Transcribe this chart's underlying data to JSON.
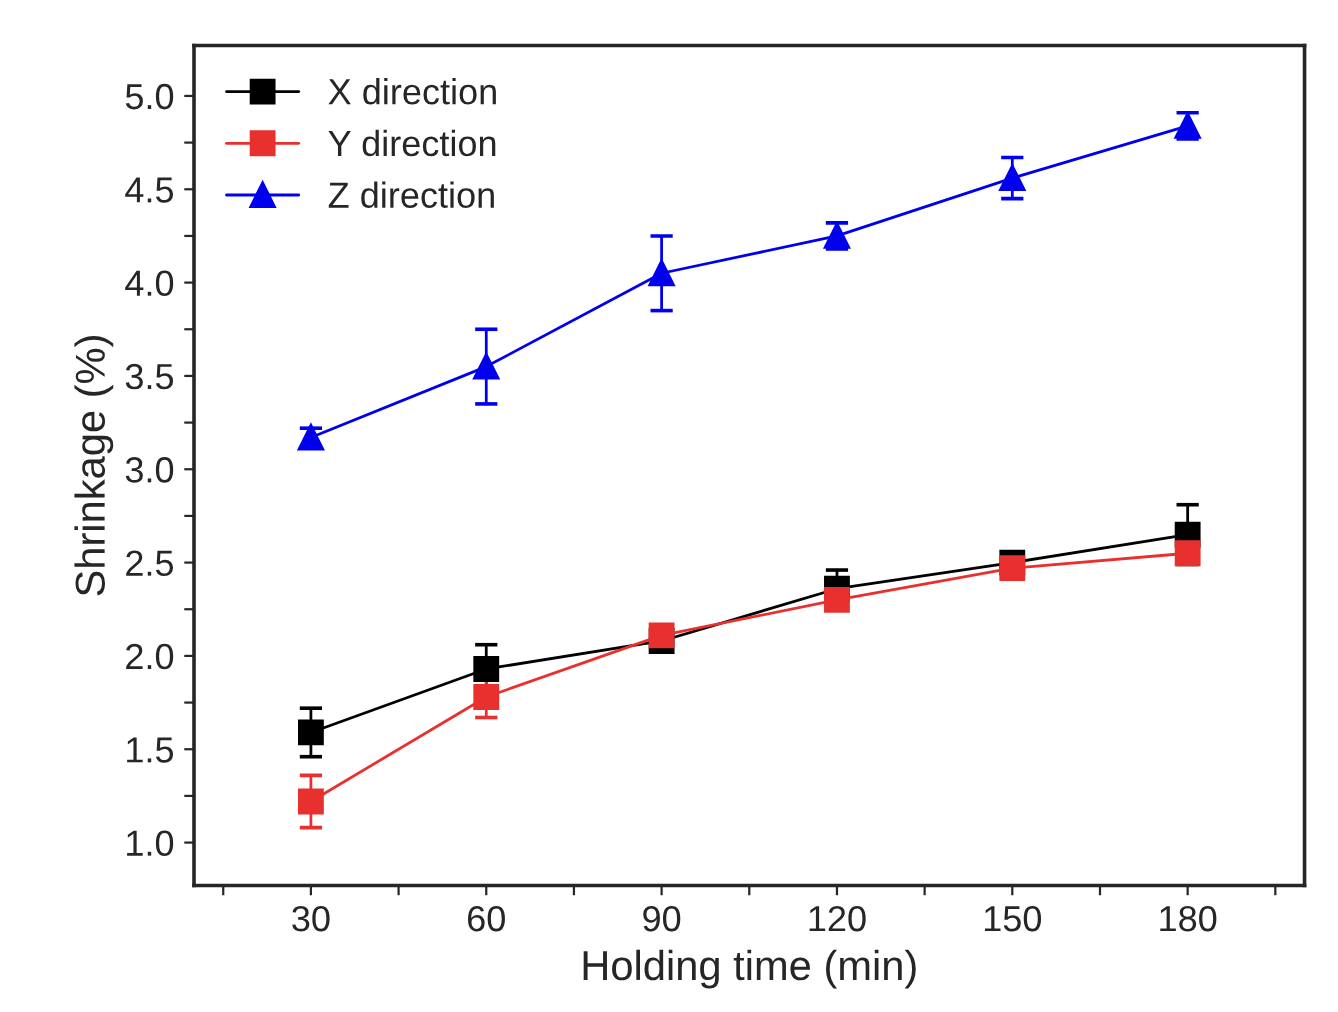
{
  "chart_data": {
    "type": "line",
    "xlabel": "Holding time (min)",
    "ylabel": "Shrinkage (%)",
    "x": [
      30,
      60,
      90,
      120,
      150,
      180
    ],
    "series": [
      {
        "name": "X direction",
        "color": "#000000",
        "marker": "square",
        "values": [
          1.59,
          1.93,
          2.08,
          2.36,
          2.5,
          2.65
        ],
        "errors": [
          0.13,
          0.13,
          0.03,
          0.1,
          0.03,
          0.16
        ]
      },
      {
        "name": "Y direction",
        "color": "#e8312f",
        "marker": "square",
        "values": [
          1.22,
          1.78,
          2.11,
          2.3,
          2.47,
          2.55
        ],
        "errors": [
          0.14,
          0.11,
          0.03,
          0.04,
          0.03,
          0.05
        ]
      },
      {
        "name": "Z direction",
        "color": "#0000ee",
        "marker": "triangle",
        "values": [
          3.17,
          3.55,
          4.05,
          4.25,
          4.56,
          4.84
        ],
        "errors": [
          0.05,
          0.2,
          0.2,
          0.07,
          0.11,
          0.07
        ]
      }
    ],
    "xlim": [
      10,
      200
    ],
    "xticks": [
      {
        "value": 15,
        "label": null
      },
      30,
      {
        "value": 45,
        "label": null
      },
      60,
      {
        "value": 75,
        "label": null
      },
      90,
      {
        "value": 105,
        "label": null
      },
      120,
      {
        "value": 135,
        "label": null
      },
      150,
      {
        "value": 165,
        "label": null
      },
      180,
      {
        "value": 195,
        "label": null
      }
    ],
    "ylim": [
      0.77,
      5.27
    ],
    "yticks": [
      {
        "value": 1.0,
        "label": "1.0"
      },
      {
        "value": 1.25,
        "label": null
      },
      {
        "value": 1.5,
        "label": "1.5"
      },
      {
        "value": 1.75,
        "label": null
      },
      {
        "value": 2.0,
        "label": "2.0"
      },
      {
        "value": 2.25,
        "label": null
      },
      {
        "value": 2.5,
        "label": "2.5"
      },
      {
        "value": 2.75,
        "label": null
      },
      {
        "value": 3.0,
        "label": "3.0"
      },
      {
        "value": 3.25,
        "label": null
      },
      {
        "value": 3.5,
        "label": "3.5"
      },
      {
        "value": 3.75,
        "label": null
      },
      {
        "value": 4.0,
        "label": "4.0"
      },
      {
        "value": 4.25,
        "label": null
      },
      {
        "value": 4.5,
        "label": "4.5"
      },
      {
        "value": 4.75,
        "label": null
      },
      {
        "value": 5.0,
        "label": "5.0"
      }
    ],
    "legend": "top left",
    "grid": false
  }
}
